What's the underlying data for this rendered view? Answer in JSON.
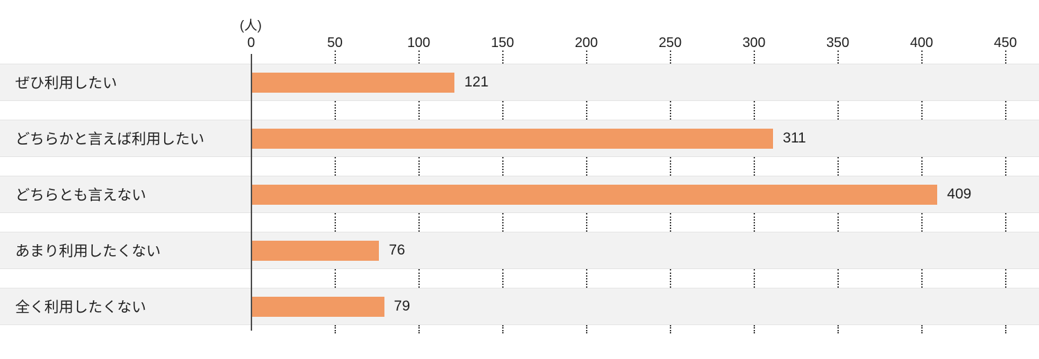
{
  "chart_data": {
    "type": "bar",
    "orientation": "horizontal",
    "title": "",
    "unit_label": "(人)",
    "categories": [
      "ぜひ利用したい",
      "どちらかと言えば利用したい",
      "どちらとも言えない",
      "あまり利用したくない",
      "全く利用したくない"
    ],
    "values": [
      121,
      311,
      409,
      76,
      79
    ],
    "xlim": [
      0,
      450
    ],
    "ticks": [
      0,
      50,
      100,
      150,
      200,
      250,
      300,
      350,
      400,
      450
    ],
    "grid": "dotted-vertical-segments-between-rows",
    "legend": "none",
    "colors": {
      "bar": "#F29A63",
      "row_background": "#F2F2F2",
      "axis_line": "#4D4D4D",
      "gridline": "#3F3F3F",
      "text": "#1F1F1F"
    }
  }
}
